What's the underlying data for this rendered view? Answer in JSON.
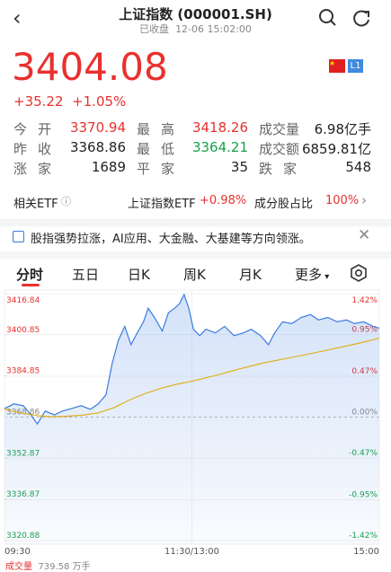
{
  "header": {
    "title": "上证指数 (000001.SH)",
    "status": "已收盘",
    "time": "12-06 15:02:00",
    "badge": "L1"
  },
  "quote": {
    "price": "3404.08",
    "change": "+35.22",
    "change_pct": "+1.05%"
  },
  "stats": [
    [
      {
        "label": "今开",
        "value": "3370.94"
      },
      {
        "label": "最高",
        "value": "3418.26"
      },
      {
        "label": "成交量",
        "value": "6.98亿手"
      }
    ],
    [
      {
        "label": "昨收",
        "value": "3368.86"
      },
      {
        "label": "最低",
        "value": "3364.21"
      },
      {
        "label": "成交额",
        "value": "6859.81亿"
      }
    ],
    [
      {
        "label": "涨家",
        "value": "1689"
      },
      {
        "label": "平家",
        "value": "35"
      },
      {
        "label": "跌家",
        "value": "548"
      }
    ]
  ],
  "etf_row": {
    "label": "相关ETF",
    "etf_name": "上证指数ETF",
    "etf_change": "+0.98%",
    "weight_label": "成分股占比",
    "weight": "100%"
  },
  "news": "股指强势拉涨，AI应用、大金融、大基建等方向领涨。",
  "tabs": [
    "分时",
    "五日",
    "日K",
    "周K",
    "月K",
    "更多"
  ],
  "intraday": {
    "type": "line",
    "xlim": [
      0,
      240
    ],
    "xticks": [
      {
        "value": 0,
        "label": "09:30"
      },
      {
        "value": 120,
        "label": "11:30/13:00"
      },
      {
        "value": 240,
        "label": "15:00"
      }
    ],
    "ylim": [
      3320.88,
      3416.84
    ],
    "yticks": [
      3416.84,
      3400.85,
      3384.85,
      3368.86,
      3352.87,
      3336.87,
      3320.88
    ],
    "y2lim": [
      -1.42,
      1.42
    ],
    "y2ticks": [
      {
        "value": 1.42,
        "label": "1.42%"
      },
      {
        "value": 0.95,
        "label": "0.95%"
      },
      {
        "value": 0.47,
        "label": "0.47%"
      },
      {
        "value": 0,
        "label": "0.00%"
      },
      {
        "value": -0.47,
        "label": "-0.47%"
      },
      {
        "value": -0.95,
        "label": "-0.95%"
      },
      {
        "value": -1.42,
        "label": "-1.42%"
      }
    ],
    "series": [
      {
        "name": "price",
        "color": "#3b7be0",
        "x": [
          0,
          6,
          12,
          17,
          21,
          26,
          32,
          37,
          43,
          49,
          55,
          60,
          65,
          69,
          73,
          77,
          81,
          85,
          89,
          92,
          96,
          101,
          105,
          109,
          112,
          115,
          118,
          121,
          125,
          129,
          135,
          141,
          147,
          153,
          158,
          164,
          169,
          173,
          178,
          184,
          190,
          196,
          201,
          207,
          213,
          219,
          224,
          230,
          236,
          240
        ],
        "values": [
          3372.2,
          3374.0,
          3373.3,
          3369.7,
          3366.2,
          3371.2,
          3369.7,
          3371.2,
          3372.2,
          3373.3,
          3371.9,
          3374.0,
          3377.5,
          3389.9,
          3398.8,
          3404.1,
          3397.0,
          3401.6,
          3405.9,
          3411.2,
          3407.6,
          3402.3,
          3409.4,
          3411.2,
          3412.9,
          3416.5,
          3411.2,
          3403.0,
          3400.5,
          3403.0,
          3401.6,
          3404.1,
          3400.5,
          3401.6,
          3403.0,
          3400.5,
          3397.0,
          3401.6,
          3405.9,
          3405.2,
          3407.6,
          3408.7,
          3406.6,
          3407.6,
          3405.9,
          3406.6,
          3405.2,
          3405.9,
          3404.1,
          3403.4
        ]
      },
      {
        "name": "average",
        "color": "#e0b020",
        "x": [
          0,
          10,
          20,
          30,
          40,
          50,
          60,
          70,
          80,
          90,
          100,
          110,
          120,
          135,
          150,
          165,
          180,
          195,
          210,
          225,
          240
        ],
        "values": [
          3372.0,
          3370.5,
          3369.5,
          3369.0,
          3369.2,
          3369.6,
          3370.5,
          3372.5,
          3375.5,
          3378.0,
          3380.0,
          3381.6,
          3382.8,
          3385.0,
          3387.5,
          3389.8,
          3391.6,
          3393.4,
          3395.3,
          3397.3,
          3399.5
        ]
      }
    ]
  },
  "footer": {
    "label": "成交量",
    "value": "739.58",
    "unit": "万手"
  }
}
